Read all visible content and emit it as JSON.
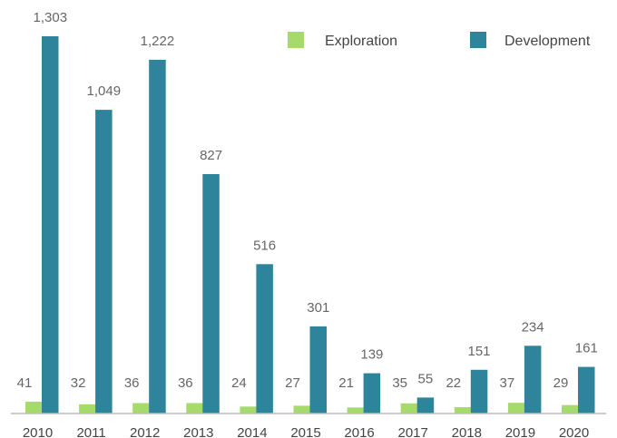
{
  "chart_data": {
    "type": "bar",
    "categories": [
      "2010",
      "2011",
      "2012",
      "2013",
      "2014",
      "2015",
      "2016",
      "2017",
      "2018",
      "2019",
      "2020"
    ],
    "series": [
      {
        "name": "Exploration",
        "color": "#a6db6c",
        "values": [
          41,
          32,
          36,
          36,
          24,
          27,
          21,
          35,
          22,
          37,
          29
        ],
        "labels": [
          "41",
          "32",
          "36",
          "36",
          "24",
          "27",
          "21",
          "35",
          "22",
          "37",
          "29"
        ]
      },
      {
        "name": "Development",
        "color": "#2e849a",
        "values": [
          1303,
          1049,
          1222,
          827,
          516,
          301,
          139,
          55,
          151,
          234,
          161
        ],
        "labels": [
          "1,303",
          "1,049",
          "1,222",
          "827",
          "516",
          "301",
          "139",
          "55",
          "151",
          "234",
          "161"
        ]
      }
    ],
    "title": "",
    "xlabel": "",
    "ylabel": "",
    "ylim": [
      0,
      1303
    ],
    "grid": false,
    "legend": "top-right",
    "axis_color": "#bbbbbb"
  }
}
